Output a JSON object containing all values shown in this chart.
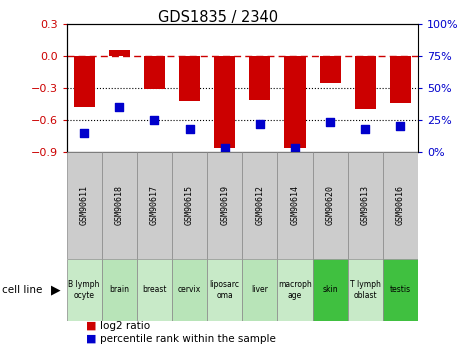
{
  "title": "GDS1835 / 2340",
  "samples": [
    "GSM90611",
    "GSM90618",
    "GSM90617",
    "GSM90615",
    "GSM90619",
    "GSM90612",
    "GSM90614",
    "GSM90620",
    "GSM90613",
    "GSM90616"
  ],
  "cell_lines": [
    "B lymph\nocyte",
    "brain",
    "breast",
    "cervix",
    "liposarc\noma",
    "liver",
    "macroph\nage",
    "skin",
    "T lymph\noblast",
    "testis"
  ],
  "cell_line_colors": [
    "#c8eac8",
    "#b8e4b8",
    "#c8eac8",
    "#b8e4b8",
    "#c8eac8",
    "#b8e4b8",
    "#c8eac8",
    "#40c040",
    "#c8eac8",
    "#40c040"
  ],
  "log2_ratio": [
    -0.48,
    0.06,
    -0.31,
    -0.42,
    -0.86,
    -0.41,
    -0.86,
    -0.25,
    -0.5,
    -0.44
  ],
  "percentile_rank": [
    15,
    35,
    25,
    18,
    3,
    22,
    3,
    23,
    18,
    20
  ],
  "ylim_left": [
    -0.9,
    0.3
  ],
  "ylim_right": [
    0,
    100
  ],
  "bar_color": "#cc0000",
  "dot_color": "#0000cc",
  "ref_line": 0.0,
  "dotted_lines": [
    -0.3,
    -0.6
  ],
  "left_ticks": [
    -0.9,
    -0.6,
    -0.3,
    0,
    0.3
  ],
  "right_ticks": [
    0,
    25,
    50,
    75,
    100
  ],
  "right_tick_labels": [
    "0%",
    "25%",
    "50%",
    "75%",
    "100%"
  ],
  "bar_width": 0.6,
  "dot_size": 35
}
